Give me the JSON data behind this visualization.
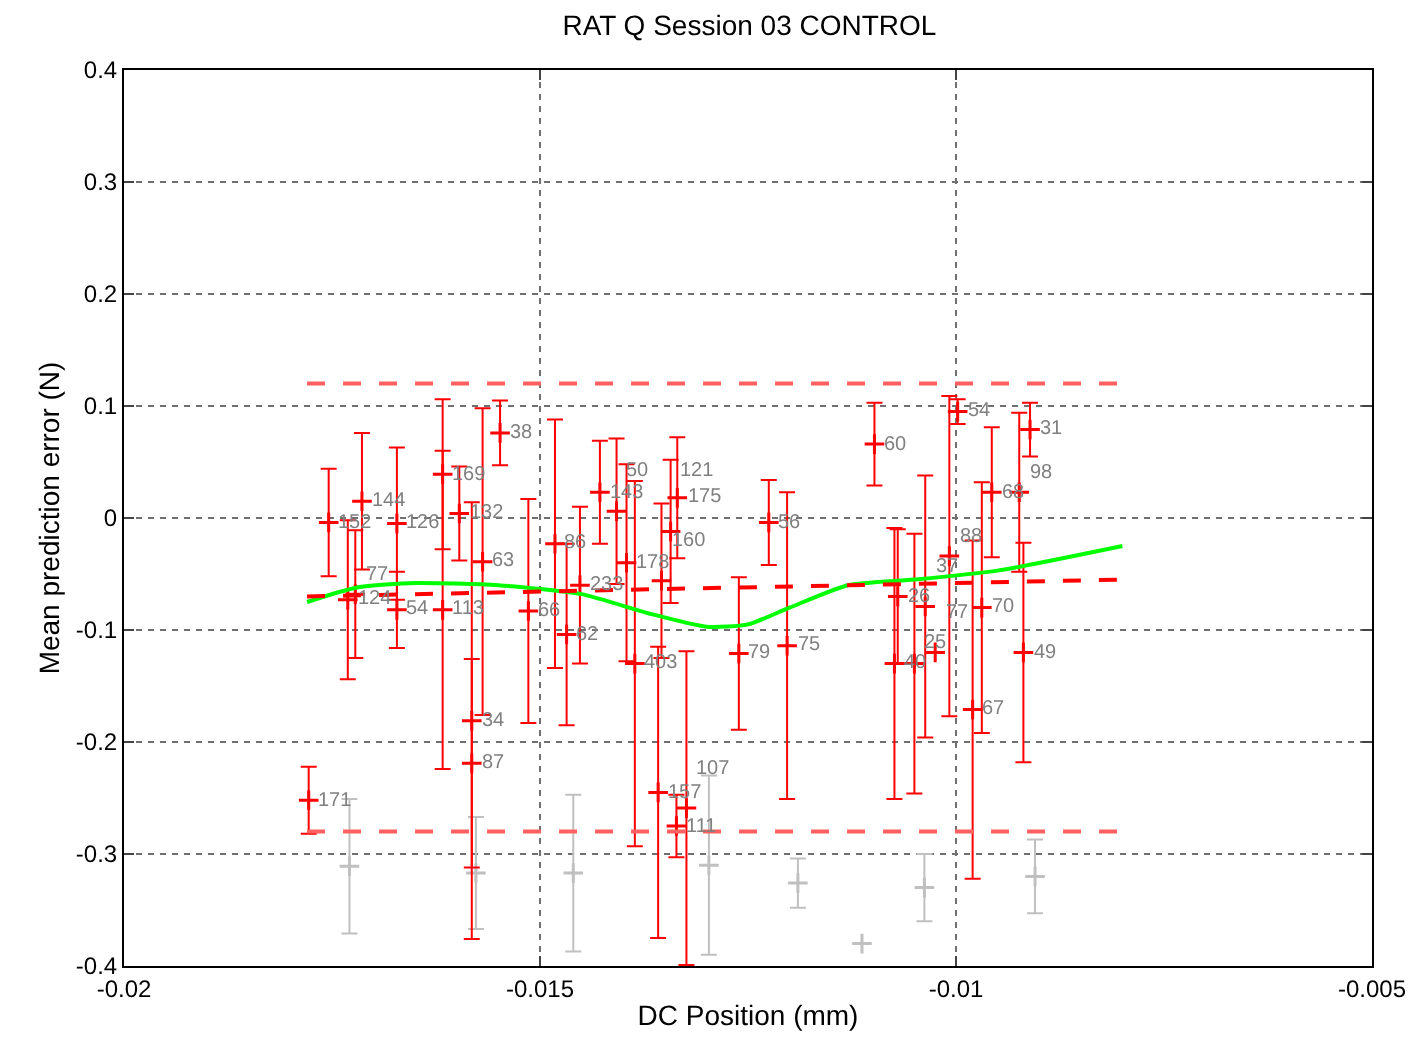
{
  "chart_data": {
    "type": "scatter",
    "title": "RAT Q Session 03 CONTROL",
    "xlabel": "DC Position (mm)",
    "ylabel": "Mean prediction error (N)",
    "xlim": [
      -0.02,
      -0.005
    ],
    "xticks": [
      -0.02,
      -0.015,
      -0.01,
      -0.005
    ],
    "ylim": [
      -0.4,
      0.4
    ],
    "yticks": [
      -0.4,
      -0.3,
      -0.2,
      -0.1,
      0,
      0.1,
      0.2,
      0.3,
      0.4
    ],
    "grid": true,
    "marker": "cross",
    "series": [
      {
        "color": "#c0c0c0",
        "x": [
          -0.01729,
          -0.01577,
          -0.0146,
          -0.01297,
          -0.0119,
          -0.01113,
          -0.01038,
          -0.00905
        ],
        "values": [
          -0.311,
          -0.317,
          -0.317,
          -0.31,
          -0.326,
          -0.38,
          -0.33,
          -0.32
        ],
        "errors": [
          0.06,
          0.05,
          0.07,
          0.08,
          0.022,
          null,
          0.03,
          0.033
        ]
      },
      {
        "color": "#ff0000",
        "x": [
          -0.01754,
          -0.01778,
          -0.01714,
          -0.01731,
          -0.01722,
          -0.01672,
          -0.01672,
          -0.01617,
          -0.01617,
          -0.01597,
          -0.01569,
          -0.01548,
          -0.01582,
          -0.01582,
          -0.01514,
          -0.01482,
          -0.01468,
          -0.01452,
          -0.01428,
          -0.01408,
          -0.01396,
          -0.01386,
          -0.01354,
          -0.01358,
          -0.01335,
          -0.01343,
          -0.01336,
          -0.01324,
          -0.01225,
          -0.01261,
          -0.01203,
          -0.01098,
          -0.0107,
          -0.01074,
          -0.0105,
          -0.01037,
          -0.01025,
          -0.01008,
          -0.00998,
          -0.0098,
          -0.00969,
          -0.00957,
          -0.00924,
          -0.00911,
          -0.00919
        ],
        "values": [
          -0.004,
          -0.252,
          0.015,
          -0.073,
          -0.068,
          -0.005,
          -0.082,
          0.039,
          -0.082,
          0.004,
          -0.039,
          0.076,
          -0.181,
          -0.219,
          -0.083,
          -0.023,
          -0.104,
          -0.06,
          0.023,
          0.006,
          -0.04,
          -0.13,
          -0.056,
          -0.245,
          0.018,
          -0.012,
          -0.275,
          -0.259,
          -0.004,
          -0.121,
          -0.114,
          0.066,
          -0.07,
          -0.13,
          -0.13,
          -0.079,
          -0.12,
          -0.034,
          0.095,
          -0.171,
          -0.08,
          0.023,
          0.023,
          0.079,
          -0.12
        ],
        "errors": [
          0.048,
          0.03,
          0.061,
          0.071,
          0.057,
          0.068,
          0.034,
          0.067,
          0.142,
          0.042,
          0.137,
          0.029,
          0.195,
          0.093,
          0.1,
          0.111,
          0.081,
          0.07,
          0.046,
          0.065,
          0.088,
          0.163,
          0.069,
          0.13,
          0.054,
          0.064,
          0.028,
          0.14,
          0.038,
          0.068,
          0.137,
          0.037,
          0.06,
          0.121,
          0.116,
          0.117,
          null,
          0.143,
          0.011,
          0.151,
          0.112,
          0.058,
          0.071,
          0.024,
          0.098
        ]
      },
      {
        "type": "line",
        "marker": "none",
        "color": "#00ff00",
        "line_style": "solid",
        "x": [
          -0.0178,
          -0.0172,
          -0.0165,
          -0.0155,
          -0.0145,
          -0.0137,
          -0.013,
          -0.0125,
          -0.012,
          -0.0113,
          -0.0105,
          -0.0095,
          -0.008
        ],
        "values": [
          -0.075,
          -0.062,
          -0.058,
          -0.06,
          -0.068,
          -0.085,
          -0.097,
          -0.095,
          -0.08,
          -0.06,
          -0.055,
          -0.047,
          -0.025
        ]
      },
      {
        "type": "line",
        "marker": "none",
        "color": "#ff0000",
        "line_style": "dashed",
        "x": [
          -0.0178,
          -0.008
        ],
        "values": [
          -0.07,
          -0.055
        ]
      },
      {
        "type": "line",
        "marker": "none",
        "color": "#ff6060",
        "line_style": "dashed",
        "x": [
          -0.0178,
          -0.008
        ],
        "values": [
          0.12,
          0.12
        ]
      },
      {
        "type": "line",
        "marker": "none",
        "color": "#ff6060",
        "line_style": "dashed",
        "x": [
          -0.0178,
          -0.008
        ],
        "values": [
          -0.28,
          -0.28
        ]
      }
    ],
    "annotations": [
      {
        "text": "152",
        "x": -0.01754,
        "y": -0.004
      },
      {
        "text": "171",
        "x": -0.01778,
        "y": -0.252
      },
      {
        "text": "144",
        "x": -0.01714,
        "y": 0.015
      },
      {
        "text": "124",
        "x": -0.01731,
        "y": -0.073
      },
      {
        "text": "77",
        "x": -0.01722,
        "y": -0.068
      },
      {
        "text": "126",
        "x": -0.01672,
        "y": -0.005
      },
      {
        "text": "54",
        "x": -0.01672,
        "y": -0.082
      },
      {
        "text": "169",
        "x": -0.01617,
        "y": 0.039
      },
      {
        "text": "113",
        "x": -0.01617,
        "y": -0.082
      },
      {
        "text": "132",
        "x": -0.01597,
        "y": 0.004
      },
      {
        "text": "63",
        "x": -0.01569,
        "y": -0.039
      },
      {
        "text": "38",
        "x": -0.01548,
        "y": 0.076
      },
      {
        "text": "34",
        "x": -0.01582,
        "y": -0.181
      },
      {
        "text": "87",
        "x": -0.01582,
        "y": -0.219
      },
      {
        "text": "66",
        "x": -0.01514,
        "y": -0.083
      },
      {
        "text": "86",
        "x": -0.01482,
        "y": -0.023
      },
      {
        "text": "62",
        "x": -0.01468,
        "y": -0.104
      },
      {
        "text": "233",
        "x": -0.01452,
        "y": -0.06
      },
      {
        "text": "143",
        "x": -0.01428,
        "y": 0.023
      },
      {
        "text": "50",
        "x": -0.01408,
        "y": 0.006
      },
      {
        "text": "178",
        "x": -0.01396,
        "y": -0.04
      },
      {
        "text": "403",
        "x": -0.01386,
        "y": -0.13
      },
      {
        "text": "160",
        "x": -0.01354,
        "y": -0.056
      },
      {
        "text": "157",
        "x": -0.01358,
        "y": -0.245
      },
      {
        "text": "175",
        "x": -0.01335,
        "y": 0.018
      },
      {
        "text": "121",
        "x": -0.01343,
        "y": -0.012
      },
      {
        "text": "111",
        "x": -0.01336,
        "y": -0.275
      },
      {
        "text": "107",
        "x": -0.01324,
        "y": -0.259
      },
      {
        "text": "56",
        "x": -0.01225,
        "y": -0.004
      },
      {
        "text": "79",
        "x": -0.01261,
        "y": -0.121
      },
      {
        "text": "75",
        "x": -0.01203,
        "y": -0.114
      },
      {
        "text": "60",
        "x": -0.01098,
        "y": 0.066
      },
      {
        "text": "26",
        "x": -0.0107,
        "y": -0.07
      },
      {
        "text": "40",
        "x": -0.01074,
        "y": -0.13
      },
      {
        "text": "25",
        "x": -0.0105,
        "y": -0.13
      },
      {
        "text": "37",
        "x": -0.01037,
        "y": -0.079
      },
      {
        "text": "77",
        "x": -0.01025,
        "y": -0.12
      },
      {
        "text": "88",
        "x": -0.01008,
        "y": -0.034
      },
      {
        "text": "54",
        "x": -0.00998,
        "y": 0.095
      },
      {
        "text": "67",
        "x": -0.0098,
        "y": -0.171
      },
      {
        "text": "70",
        "x": -0.00969,
        "y": -0.08
      },
      {
        "text": "68",
        "x": -0.00957,
        "y": 0.023
      },
      {
        "text": "98",
        "x": -0.00924,
        "y": 0.023
      },
      {
        "text": "31",
        "x": -0.00911,
        "y": 0.079
      },
      {
        "text": "49",
        "x": -0.00919,
        "y": -0.12
      }
    ]
  }
}
